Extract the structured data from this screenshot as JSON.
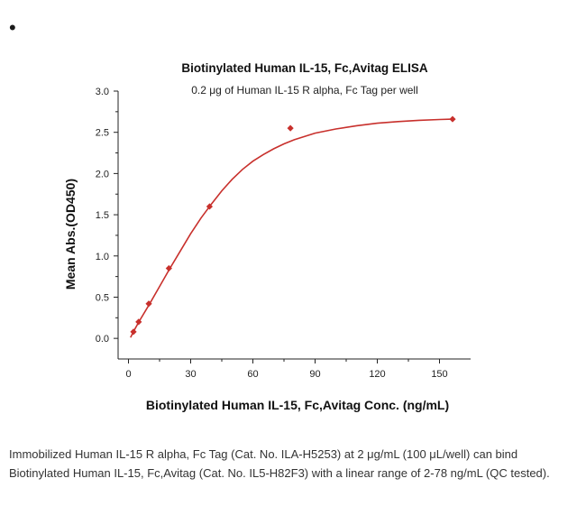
{
  "bullet": "•",
  "caption": "Immobilized Human IL-15 R alpha, Fc Tag (Cat. No. ILA-H5253) at 2 μg/mL (100 μL/well) can bind Biotinylated Human IL-15, Fc,Avitag (Cat. No. IL5-H82F3) with a linear range of 2-78 ng/mL (QC tested).",
  "colors": {
    "series": "#c8302c",
    "axis": "#222222"
  },
  "chart_data": {
    "type": "scatter",
    "title": "Biotinylated Human IL-15, Fc,Avitag ELISA",
    "subtitle": "0.2 μg of Human IL-15 R alpha, Fc Tag per well",
    "xlabel": "Biotinylated Human IL-15, Fc,Avitag Conc. (ng/mL)",
    "ylabel": "Mean Abs.(OD450)",
    "xlim": [
      -5,
      165
    ],
    "ylim": [
      -0.25,
      3.0
    ],
    "x_ticks": [
      0,
      30,
      60,
      90,
      120,
      150
    ],
    "y_ticks": [
      0.0,
      0.5,
      1.0,
      1.5,
      2.0,
      2.5,
      3.0
    ],
    "x_tick_labels": [
      "0",
      "30",
      "60",
      "90",
      "120",
      "150"
    ],
    "y_tick_labels": [
      "0.0",
      "0.5",
      "1.0",
      "1.5",
      "2.0",
      "2.5",
      "3.0"
    ],
    "grid": false,
    "marker": "diamond",
    "series": [
      {
        "points": [
          {
            "x": 2.4,
            "y": 0.08
          },
          {
            "x": 4.9,
            "y": 0.2
          },
          {
            "x": 9.8,
            "y": 0.42
          },
          {
            "x": 19.5,
            "y": 0.85
          },
          {
            "x": 39.1,
            "y": 1.6
          },
          {
            "x": 78.1,
            "y": 2.55
          },
          {
            "x": 156.3,
            "y": 2.66
          }
        ],
        "fit": "4PL",
        "fit_curve": [
          {
            "x": 1.0,
            "y": 0.01
          },
          {
            "x": 2.4,
            "y": 0.08
          },
          {
            "x": 5,
            "y": 0.2
          },
          {
            "x": 10,
            "y": 0.41
          },
          {
            "x": 15,
            "y": 0.63
          },
          {
            "x": 20,
            "y": 0.85
          },
          {
            "x": 25,
            "y": 1.06
          },
          {
            "x": 30,
            "y": 1.27
          },
          {
            "x": 35,
            "y": 1.46
          },
          {
            "x": 40,
            "y": 1.63
          },
          {
            "x": 45,
            "y": 1.79
          },
          {
            "x": 50,
            "y": 1.93
          },
          {
            "x": 55,
            "y": 2.05
          },
          {
            "x": 60,
            "y": 2.15
          },
          {
            "x": 65,
            "y": 2.23
          },
          {
            "x": 70,
            "y": 2.3
          },
          {
            "x": 75,
            "y": 2.36
          },
          {
            "x": 80,
            "y": 2.41
          },
          {
            "x": 90,
            "y": 2.49
          },
          {
            "x": 100,
            "y": 2.54
          },
          {
            "x": 110,
            "y": 2.58
          },
          {
            "x": 120,
            "y": 2.61
          },
          {
            "x": 130,
            "y": 2.63
          },
          {
            "x": 140,
            "y": 2.645
          },
          {
            "x": 150,
            "y": 2.655
          },
          {
            "x": 156.3,
            "y": 2.66
          }
        ]
      }
    ]
  }
}
